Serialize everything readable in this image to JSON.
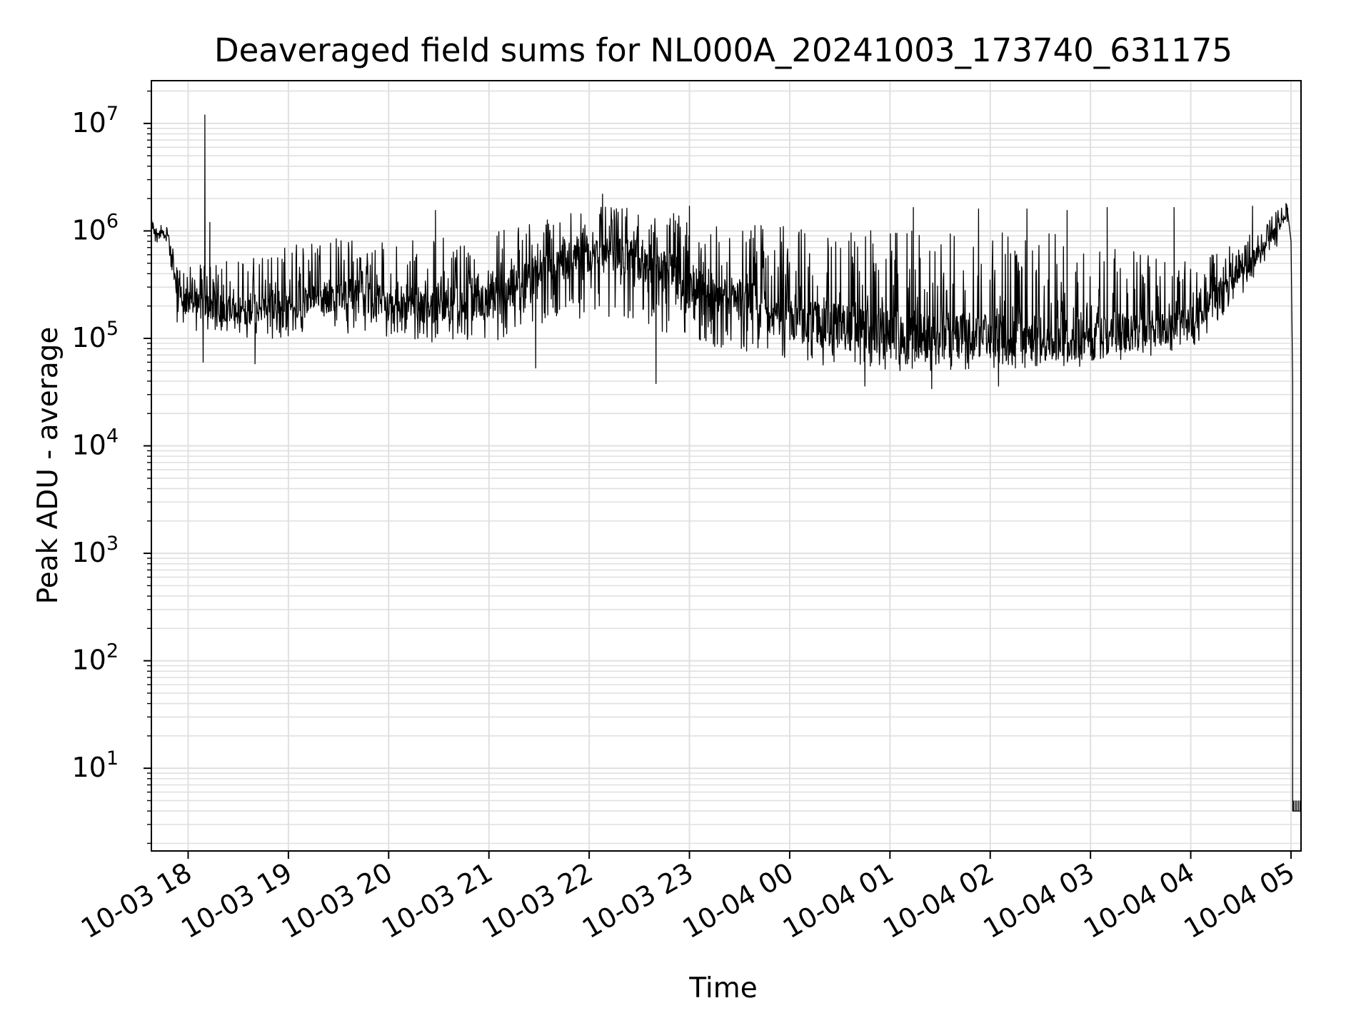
{
  "chart_data": {
    "type": "line",
    "title": "Deaveraged field sums for NL000A_20241003_173740_631175",
    "xlabel": "Time",
    "ylabel": "Peak ADU - average",
    "yscale": "log",
    "grid": true,
    "line_color": "#000000",
    "grid_color": "#e0e0e0",
    "x_start": "2024-10-03 17:38",
    "x_end": "2024-10-04 05:06",
    "ylim": [
      1.7,
      25000000
    ],
    "x_ticks": [
      "10-03 18",
      "10-03 19",
      "10-03 20",
      "10-03 21",
      "10-03 22",
      "10-03 23",
      "10-04 00",
      "10-04 01",
      "10-04 02",
      "10-04 03",
      "10-04 04",
      "10-04 05"
    ],
    "y_ticks": [
      {
        "base": "10",
        "exp": "1"
      },
      {
        "base": "10",
        "exp": "2"
      },
      {
        "base": "10",
        "exp": "3"
      },
      {
        "base": "10",
        "exp": "4"
      },
      {
        "base": "10",
        "exp": "5"
      },
      {
        "base": "10",
        "exp": "6"
      },
      {
        "base": "10",
        "exp": "7"
      }
    ],
    "series": [
      {
        "trend": [
          {
            "t": "2024-10-03 17:38",
            "lo": 800000,
            "mid": 1000000,
            "hi": 1250000
          },
          {
            "t": "2024-10-03 17:48",
            "lo": 700000,
            "mid": 900000,
            "hi": 1100000
          },
          {
            "t": "2024-10-03 17:54",
            "lo": 120000,
            "mid": 220000,
            "hi": 450000
          },
          {
            "t": "2024-10-03 18:30",
            "lo": 100000,
            "mid": 180000,
            "hi": 550000
          },
          {
            "t": "2024-10-03 19:00",
            "lo": 100000,
            "mid": 200000,
            "hi": 750000
          },
          {
            "t": "2024-10-03 19:30",
            "lo": 110000,
            "mid": 260000,
            "hi": 900000
          },
          {
            "t": "2024-10-03 20:00",
            "lo": 100000,
            "mid": 220000,
            "hi": 800000
          },
          {
            "t": "2024-10-03 20:30",
            "lo": 90000,
            "mid": 200000,
            "hi": 900000
          },
          {
            "t": "2024-10-03 21:00",
            "lo": 90000,
            "mid": 230000,
            "hi": 1000000
          },
          {
            "t": "2024-10-03 21:30",
            "lo": 130000,
            "mid": 400000,
            "hi": 1300000
          },
          {
            "t": "2024-10-03 22:00",
            "lo": 150000,
            "mid": 600000,
            "hi": 1700000
          },
          {
            "t": "2024-10-03 22:30",
            "lo": 140000,
            "mid": 550000,
            "hi": 1600000
          },
          {
            "t": "2024-10-03 23:00",
            "lo": 90000,
            "mid": 320000,
            "hi": 1400000
          },
          {
            "t": "2024-10-04 00:00",
            "lo": 60000,
            "mid": 150000,
            "hi": 1100000
          },
          {
            "t": "2024-10-04 01:00",
            "lo": 50000,
            "mid": 110000,
            "hi": 1000000
          },
          {
            "t": "2024-10-04 02:00",
            "lo": 50000,
            "mid": 100000,
            "hi": 1000000
          },
          {
            "t": "2024-10-04 03:00",
            "lo": 55000,
            "mid": 100000,
            "hi": 900000
          },
          {
            "t": "2024-10-04 04:00",
            "lo": 80000,
            "mid": 140000,
            "hi": 500000
          },
          {
            "t": "2024-10-04 04:20",
            "lo": 150000,
            "mid": 300000,
            "hi": 700000
          },
          {
            "t": "2024-10-04 04:40",
            "lo": 350000,
            "mid": 600000,
            "hi": 1000000
          },
          {
            "t": "2024-10-04 04:56",
            "lo": 900000,
            "mid": 1300000,
            "hi": 1800000
          }
        ],
        "spikes": [
          {
            "t": "2024-10-03 18:10",
            "value": 12000000
          },
          {
            "t": "2024-10-03 18:13",
            "value": 1200000
          },
          {
            "t": "2024-10-03 20:28",
            "value": 1550000
          },
          {
            "t": "2024-10-03 22:08",
            "value": 2200000
          },
          {
            "t": "2024-10-03 23:00",
            "value": 1700000
          },
          {
            "t": "2024-10-04 01:14",
            "value": 1650000
          },
          {
            "t": "2024-10-04 01:53",
            "value": 1600000
          },
          {
            "t": "2024-10-04 02:22",
            "value": 1600000
          },
          {
            "t": "2024-10-04 02:46",
            "value": 1550000
          },
          {
            "t": "2024-10-04 03:10",
            "value": 1650000
          },
          {
            "t": "2024-10-04 03:50",
            "value": 1650000
          },
          {
            "t": "2024-10-04 04:37",
            "value": 1700000
          },
          {
            "t": "2024-10-04 04:57",
            "value": 1800000
          }
        ],
        "dips": [
          {
            "t": "2024-10-03 18:09",
            "value": 60000
          },
          {
            "t": "2024-10-03 18:40",
            "value": 58000
          },
          {
            "t": "2024-10-03 21:28",
            "value": 53000
          },
          {
            "t": "2024-10-03 22:40",
            "value": 38000
          },
          {
            "t": "2024-10-04 00:45",
            "value": 36000
          },
          {
            "t": "2024-10-04 01:25",
            "value": 34000
          },
          {
            "t": "2024-10-04 02:05",
            "value": 36000
          }
        ],
        "tail": [
          {
            "t": "2024-10-04 04:58",
            "value": 1500000
          },
          {
            "t": "2024-10-04 05:00",
            "value": 800000
          },
          {
            "t": "2024-10-04 05:01",
            "value": 40000
          },
          {
            "t": "2024-10-04 05:01",
            "value": 4
          },
          {
            "t": "2024-10-04 05:06",
            "value": 4
          }
        ]
      }
    ]
  }
}
